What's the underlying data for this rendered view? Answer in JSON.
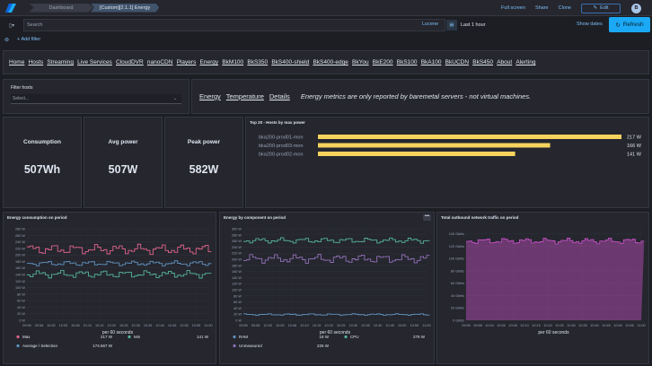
{
  "topbar": {
    "breadcrumb_home": "Dashboard",
    "breadcrumb_current": "[Custom][2.1.1] Energy",
    "links": [
      "Full screen",
      "Share",
      "Clone"
    ],
    "edit_label": "Edit",
    "avatar_letter": "B"
  },
  "query": {
    "placeholder": "Search",
    "language": "Lucene",
    "time_range": "Last 1 hour",
    "show_dates": "Show dates",
    "refresh": "Refresh",
    "add_filter": "+ Add filter"
  },
  "nav": [
    "Home",
    "Hosts",
    "Streaming",
    "Live Services",
    "CloudDVR",
    "nanoCDN",
    "Players",
    "Energy",
    "BkM100",
    "BkS350",
    "BkS400-shield",
    "BkS400-edge",
    "BkYou",
    "BkE200",
    "BkS100",
    "BkA100",
    "BkUCDN",
    "BkS450",
    "About",
    "Alerting"
  ],
  "filter_hosts": {
    "label": "Filter hosts",
    "placeholder": "Select..."
  },
  "info": {
    "links": [
      "Energy",
      "Temperature",
      "Details"
    ],
    "note": "Energy metrics are only reported by baremetal servers - not virtual machines."
  },
  "stats": [
    {
      "label": "Consumption",
      "value": "507Wh"
    },
    {
      "label": "Avg power",
      "value": "507W"
    },
    {
      "label": "Peak power",
      "value": "582W"
    }
  ],
  "top20": {
    "title": "Top 20 - Hosts by max power",
    "bars": [
      {
        "name": "bka200-prod01-mon",
        "value": 217,
        "label": "217 W"
      },
      {
        "name": "bka200-prod03-mon",
        "value": 166,
        "label": "166 W"
      },
      {
        "name": "bka200-prod02-mon",
        "value": 141,
        "label": "141 W"
      }
    ],
    "max": 217,
    "color": "#f5d35d"
  },
  "time_ticks": [
    "09:55",
    "09:58",
    "10:00",
    "10:05",
    "10:08",
    "10:10",
    "10:15",
    "10:20",
    "10:25",
    "10:30",
    "10:35",
    "10:40",
    "10:45",
    "10:50",
    "10:55",
    "11:00"
  ],
  "chart_data": [
    {
      "type": "line",
      "title": "Energy consumption on period",
      "xlabel": "per 60 seconds",
      "ylim": [
        0,
        280
      ],
      "yticks": [
        "0 W",
        "20 W",
        "40 W",
        "60 W",
        "80 W",
        "100 W",
        "120 W",
        "140 W",
        "160 W",
        "180 W",
        "200 W",
        "220 W",
        "240 W",
        "260 W",
        "280 W"
      ],
      "series": [
        {
          "name": "Max",
          "color": "#e0648a",
          "base": 217,
          "amp": 16,
          "stat": "217 W"
        },
        {
          "name": "Average / Selection",
          "color": "#6092c0",
          "base": 174,
          "amp": 8,
          "stat": "174.667 W"
        },
        {
          "name": "Min",
          "color": "#54b399",
          "base": 141,
          "amp": 12,
          "stat": "141 W"
        }
      ]
    },
    {
      "type": "line",
      "title": "Energy by component on period",
      "xlabel": "per 60 seconds",
      "ylim": [
        0,
        320
      ],
      "yticks": [
        "0 W",
        "20 W",
        "40 W",
        "60 W",
        "80 W",
        "100 W",
        "120 W",
        "140 W",
        "160 W",
        "180 W",
        "200 W",
        "220 W",
        "240 W",
        "260 W",
        "280 W",
        "300 W"
      ],
      "series": [
        {
          "name": "RAM",
          "color": "#6092c0",
          "base": 20,
          "amp": 3,
          "stat": "18 W"
        },
        {
          "name": "CPU",
          "color": "#54b399",
          "base": 279,
          "amp": 10,
          "stat": "279 W"
        },
        {
          "name": "Unmeasured",
          "color": "#9170b8",
          "base": 215,
          "amp": 16,
          "stat": "225 W"
        }
      ]
    },
    {
      "type": "area",
      "title": "Total outbound network traffic on period",
      "xlabel": "per 60 seconds",
      "ylim": [
        0,
        150
      ],
      "yticks": [
        "0 Gbit/s",
        "20 Gbit/s",
        "40 Gbit/s",
        "60 Gbit/s",
        "80 Gbit/s",
        "100 Gbit/s",
        "120 Gbit/s",
        "140 Gbit/s"
      ],
      "series": [
        {
          "name": "",
          "color": "#c050c0",
          "base": 130,
          "amp": 5,
          "stat": ""
        }
      ]
    }
  ]
}
